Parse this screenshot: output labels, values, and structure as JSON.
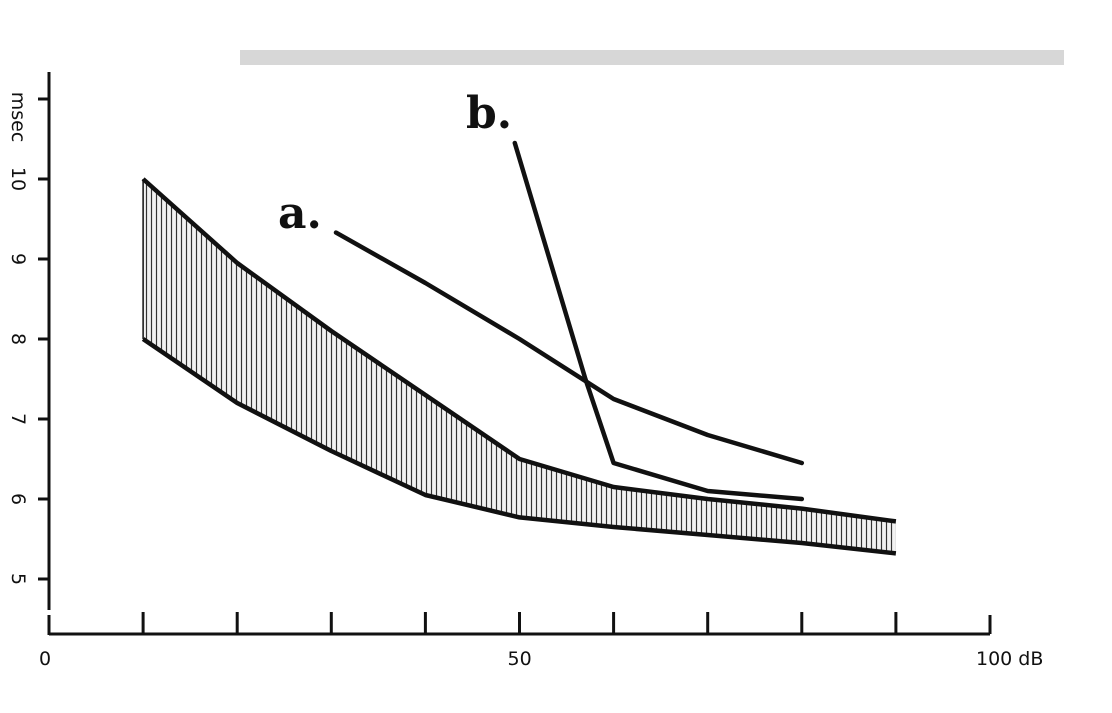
{
  "chart_data": {
    "type": "line",
    "title": "",
    "xlabel": "dB",
    "ylabel": "msec",
    "xlim": [
      0,
      100
    ],
    "ylim": [
      4.5,
      11.3
    ],
    "x_ticks": [
      10,
      20,
      30,
      40,
      50,
      60,
      70,
      80,
      90,
      100
    ],
    "x_tick_labels": [
      {
        "x": 0,
        "text": "0"
      },
      {
        "x": 50,
        "text": "50"
      },
      {
        "x": 100,
        "text": "100 dB"
      }
    ],
    "y_ticks": [
      5,
      6,
      7,
      8,
      9,
      10,
      11
    ],
    "y_tick_labels": [
      {
        "y": 5,
        "text": "5"
      },
      {
        "y": 6,
        "text": "6"
      },
      {
        "y": 7,
        "text": "7"
      },
      {
        "y": 8,
        "text": "8"
      },
      {
        "y": 9,
        "text": "9"
      },
      {
        "y": 10,
        "text": "10"
      }
    ],
    "grid": false,
    "band": {
      "upper": [
        {
          "x": 10,
          "y": 10.0
        },
        {
          "x": 20,
          "y": 8.95
        },
        {
          "x": 30,
          "y": 8.1
        },
        {
          "x": 40,
          "y": 7.3
        },
        {
          "x": 50,
          "y": 6.5
        },
        {
          "x": 60,
          "y": 6.15
        },
        {
          "x": 70,
          "y": 6.0
        },
        {
          "x": 80,
          "y": 5.88
        },
        {
          "x": 90,
          "y": 5.72
        }
      ],
      "lower": [
        {
          "x": 10,
          "y": 8.0
        },
        {
          "x": 20,
          "y": 7.2
        },
        {
          "x": 30,
          "y": 6.6
        },
        {
          "x": 40,
          "y": 6.05
        },
        {
          "x": 50,
          "y": 5.77
        },
        {
          "x": 60,
          "y": 5.65
        },
        {
          "x": 70,
          "y": 5.55
        },
        {
          "x": 80,
          "y": 5.45
        },
        {
          "x": 90,
          "y": 5.32
        }
      ]
    },
    "series": [
      {
        "name": "a.",
        "points": [
          {
            "x": 30.5,
            "y": 9.33
          },
          {
            "x": 40,
            "y": 8.7
          },
          {
            "x": 50,
            "y": 8.0
          },
          {
            "x": 60,
            "y": 7.25
          },
          {
            "x": 70,
            "y": 6.8
          },
          {
            "x": 80,
            "y": 6.45
          }
        ]
      },
      {
        "name": "b.",
        "points": [
          {
            "x": 49.5,
            "y": 10.45
          },
          {
            "x": 57,
            "y": 7.5
          },
          {
            "x": 60,
            "y": 6.45
          },
          {
            "x": 70,
            "y": 6.1
          },
          {
            "x": 80,
            "y": 6.0
          }
        ]
      }
    ]
  }
}
